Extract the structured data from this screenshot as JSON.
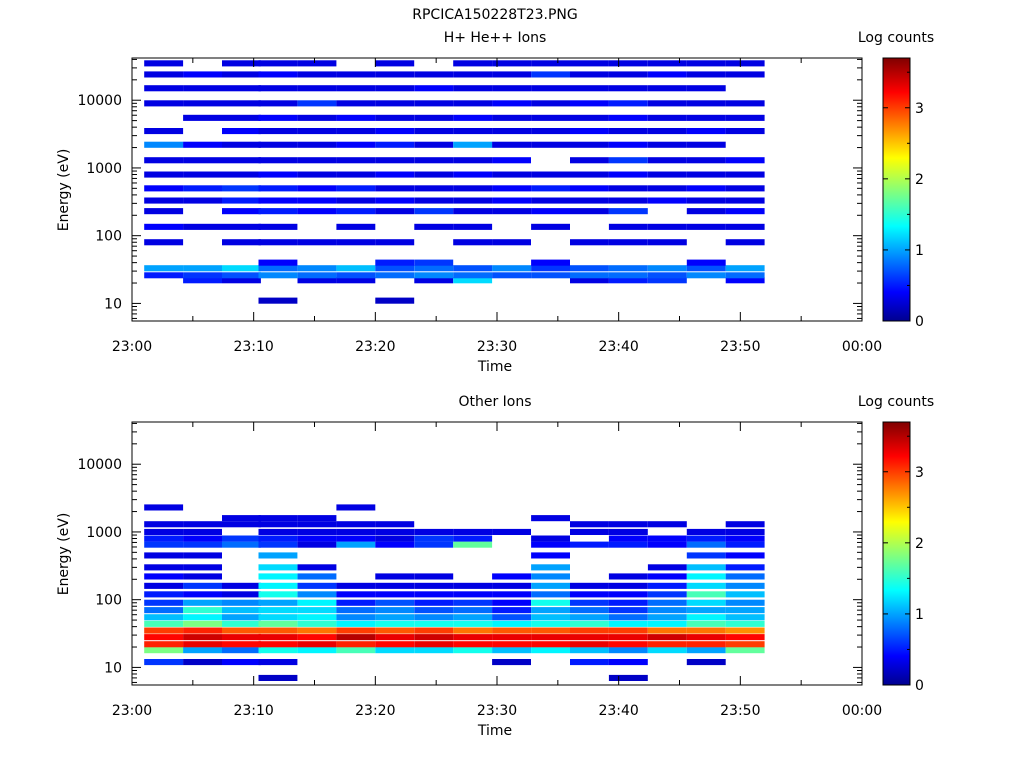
{
  "figure_title": "RPCICA150228T23.PNG",
  "chart_data": [
    {
      "type": "heatmap",
      "title": "H+ He++ Ions",
      "xlabel": "Time",
      "ylabel": "Energy (eV)",
      "colorbar_label": "Log counts",
      "colorbar_ticks": [
        "0",
        "1",
        "2",
        "3"
      ],
      "colorbar_range": [
        0,
        3.7
      ],
      "xticks": [
        "23:00",
        "23:10",
        "23:20",
        "23:30",
        "23:40",
        "23:50",
        "00:00"
      ],
      "xlim_minutes": [
        0,
        60
      ],
      "yticks": [
        "10",
        "100",
        "1000",
        "10000"
      ],
      "yscale": "log",
      "ylim": [
        5.5,
        42000
      ],
      "time_bins_minutes": [
        1,
        4.2,
        7.4,
        10.4,
        13.6,
        16.8,
        20,
        23.2,
        26.4,
        29.6,
        32.8,
        36,
        39.2,
        42.4,
        45.6,
        48.8
      ],
      "energy_bins": [
        {
          "e": 11,
          "v": [
            null,
            null,
            null,
            0.2,
            null,
            null,
            0.2,
            null,
            null,
            null,
            null,
            null,
            null,
            null,
            null,
            null
          ]
        },
        {
          "e": 22,
          "v": [
            null,
            0.5,
            0.3,
            null,
            0.3,
            0.3,
            null,
            0.3,
            1.2,
            null,
            null,
            0.3,
            0.5,
            0.6,
            null,
            0.4
          ]
        },
        {
          "e": 26,
          "v": [
            0.5,
            0.6,
            0.7,
            0.9,
            0.8,
            0.7,
            0.8,
            0.9,
            0.8,
            0.7,
            0.7,
            0.8,
            0.8,
            0.7,
            0.9,
            0.8
          ]
        },
        {
          "e": 33,
          "v": [
            1.0,
            1.0,
            1.2,
            0.8,
            0.9,
            1.1,
            0.7,
            0.8,
            0.7,
            0.9,
            0.6,
            0.7,
            0.8,
            0.9,
            0.7,
            1.0
          ]
        },
        {
          "e": 40,
          "v": [
            null,
            null,
            null,
            0.4,
            null,
            null,
            0.5,
            0.6,
            null,
            null,
            0.4,
            null,
            null,
            null,
            0.4,
            null
          ]
        },
        {
          "e": 80,
          "v": [
            0.3,
            null,
            0.3,
            0.3,
            0.3,
            0.3,
            0.3,
            null,
            0.3,
            0.3,
            null,
            0.3,
            0.3,
            0.3,
            null,
            0.3
          ]
        },
        {
          "e": 135,
          "v": [
            0.4,
            0.3,
            0.3,
            0.3,
            null,
            0.3,
            null,
            0.3,
            0.3,
            null,
            0.3,
            null,
            0.3,
            0.3,
            0.3,
            0.3
          ]
        },
        {
          "e": 230,
          "v": [
            0.3,
            null,
            0.4,
            0.5,
            0.4,
            0.5,
            0.3,
            0.6,
            0.3,
            0.3,
            0.4,
            0.3,
            0.6,
            null,
            0.3,
            0.4
          ]
        },
        {
          "e": 330,
          "v": [
            0.3,
            0.3,
            0.5,
            0.4,
            0.4,
            0.3,
            0.4,
            0.3,
            0.3,
            0.4,
            0.3,
            0.3,
            0.3,
            0.4,
            0.3,
            0.3
          ]
        },
        {
          "e": 500,
          "v": [
            0.4,
            0.5,
            0.6,
            0.5,
            0.4,
            0.5,
            0.3,
            0.3,
            0.3,
            0.4,
            0.5,
            0.4,
            0.3,
            0.3,
            0.4,
            0.3
          ]
        },
        {
          "e": 800,
          "v": [
            0.3,
            0.3,
            0.3,
            0.4,
            0.3,
            0.3,
            0.4,
            0.3,
            0.4,
            0.3,
            0.3,
            0.3,
            0.4,
            0.3,
            0.3,
            0.3
          ]
        },
        {
          "e": 1300,
          "v": [
            0.3,
            0.3,
            0.3,
            0.3,
            0.3,
            0.3,
            0.3,
            0.3,
            0.3,
            0.4,
            null,
            0.3,
            0.6,
            0.3,
            0.3,
            0.4
          ]
        },
        {
          "e": 2200,
          "v": [
            0.9,
            0.4,
            0.3,
            0.3,
            0.3,
            0.4,
            0.5,
            0.3,
            1.0,
            0.3,
            0.3,
            0.3,
            0.4,
            0.3,
            0.3,
            null
          ]
        },
        {
          "e": 3500,
          "v": [
            0.3,
            null,
            0.4,
            0.3,
            0.3,
            0.3,
            0.4,
            0.3,
            0.3,
            0.3,
            0.3,
            0.4,
            0.3,
            0.3,
            0.4,
            0.3
          ]
        },
        {
          "e": 5500,
          "v": [
            null,
            0.3,
            0.3,
            0.4,
            0.3,
            0.4,
            0.3,
            0.3,
            0.4,
            0.3,
            0.3,
            0.3,
            0.4,
            0.3,
            0.3,
            0.3
          ]
        },
        {
          "e": 9000,
          "v": [
            0.3,
            0.3,
            0.3,
            0.3,
            0.6,
            0.3,
            0.3,
            0.3,
            0.3,
            0.4,
            0.3,
            0.4,
            0.5,
            0.3,
            0.3,
            0.3
          ]
        },
        {
          "e": 15000,
          "v": [
            0.3,
            0.3,
            0.3,
            0.3,
            0.3,
            0.3,
            0.3,
            0.4,
            0.3,
            0.3,
            0.3,
            0.3,
            0.3,
            0.3,
            0.3,
            null
          ]
        },
        {
          "e": 24000,
          "v": [
            0.3,
            0.4,
            0.3,
            0.4,
            0.3,
            0.3,
            0.3,
            0.3,
            0.3,
            0.3,
            0.6,
            0.3,
            0.3,
            0.4,
            0.3,
            0.3
          ]
        },
        {
          "e": 35000,
          "v": [
            0.3,
            null,
            0.3,
            0.3,
            0.3,
            null,
            0.3,
            null,
            0.3,
            0.3,
            0.3,
            0.3,
            0.3,
            0.3,
            0.3,
            0.3
          ]
        }
      ]
    },
    {
      "type": "heatmap",
      "title": "Other Ions",
      "xlabel": "Time",
      "ylabel": "Energy (eV)",
      "colorbar_label": "Log counts",
      "colorbar_ticks": [
        "0",
        "1",
        "2",
        "3"
      ],
      "colorbar_range": [
        0,
        3.7
      ],
      "xticks": [
        "23:00",
        "23:10",
        "23:20",
        "23:30",
        "23:40",
        "23:50",
        "00:00"
      ],
      "xlim_minutes": [
        0,
        60
      ],
      "yticks": [
        "10",
        "100",
        "1000",
        "10000"
      ],
      "yscale": "log",
      "ylim": [
        5.5,
        42000
      ],
      "time_bins_minutes": [
        1,
        4.2,
        7.4,
        10.4,
        13.6,
        16.8,
        20,
        23.2,
        26.4,
        29.6,
        32.8,
        36,
        39.2,
        42.4,
        45.6,
        48.8
      ],
      "energy_bins": [
        {
          "e": 7,
          "v": [
            null,
            null,
            null,
            0.2,
            null,
            null,
            null,
            null,
            null,
            null,
            null,
            null,
            0.2,
            null,
            null,
            null
          ]
        },
        {
          "e": 12,
          "v": [
            0.6,
            0.2,
            0.4,
            0.3,
            null,
            null,
            null,
            null,
            null,
            0.2,
            null,
            0.5,
            0.4,
            null,
            0.2,
            null
          ]
        },
        {
          "e": 18,
          "v": [
            1.8,
            1.0,
            0.8,
            1.4,
            1.3,
            1.6,
            1.2,
            1.2,
            1.4,
            1.1,
            1.3,
            1.1,
            0.9,
            1.2,
            1.0,
            1.7
          ]
        },
        {
          "e": 22,
          "v": [
            3.1,
            3.3,
            3.2,
            3.2,
            3.3,
            3.1,
            3.2,
            3.3,
            3.2,
            3.2,
            3.2,
            3.3,
            3.2,
            3.1,
            3.1,
            3.0
          ]
        },
        {
          "e": 28,
          "v": [
            3.2,
            3.4,
            3.3,
            3.3,
            3.2,
            3.5,
            3.3,
            3.4,
            3.3,
            3.3,
            3.3,
            3.3,
            3.3,
            3.4,
            3.3,
            3.2
          ]
        },
        {
          "e": 35,
          "v": [
            3.0,
            3.1,
            2.9,
            2.9,
            2.8,
            3.0,
            2.9,
            3.0,
            2.8,
            2.9,
            2.9,
            3.0,
            3.0,
            2.8,
            2.8,
            2.7
          ]
        },
        {
          "e": 44,
          "v": [
            1.6,
            1.8,
            1.5,
            1.7,
            1.5,
            1.3,
            1.4,
            1.4,
            1.4,
            1.3,
            1.4,
            1.5,
            1.3,
            1.3,
            1.6,
            1.5
          ]
        },
        {
          "e": 55,
          "v": [
            1.1,
            1.3,
            1.0,
            1.2,
            1.3,
            0.9,
            1.0,
            0.9,
            1.0,
            0.7,
            1.1,
            1.0,
            0.8,
            1.0,
            1.3,
            1.1
          ]
        },
        {
          "e": 70,
          "v": [
            0.8,
            1.5,
            1.1,
            1.2,
            1.2,
            0.8,
            0.9,
            0.7,
            0.8,
            0.5,
            1.0,
            0.8,
            0.6,
            0.9,
            1.0,
            1.0
          ]
        },
        {
          "e": 90,
          "v": [
            0.6,
            1.0,
            0.9,
            1.0,
            1.3,
            0.5,
            0.7,
            0.5,
            0.6,
            0.4,
            1.4,
            0.6,
            0.5,
            0.8,
            1.2,
            0.9
          ]
        },
        {
          "e": 120,
          "v": [
            0.5,
            0.4,
            0.3,
            1.4,
            0.9,
            0.4,
            0.4,
            0.4,
            0.4,
            0.4,
            0.8,
            0.4,
            0.4,
            0.6,
            1.6,
            1.1
          ]
        },
        {
          "e": 160,
          "v": [
            0.3,
            0.6,
            0.3,
            1.3,
            0.6,
            0.3,
            0.3,
            0.3,
            0.3,
            0.3,
            1.0,
            0.3,
            0.3,
            0.5,
            1.2,
            0.9
          ]
        },
        {
          "e": 220,
          "v": [
            0.4,
            0.3,
            null,
            1.3,
            0.8,
            null,
            0.3,
            0.3,
            null,
            0.4,
            0.9,
            null,
            0.3,
            0.4,
            1.3,
            0.8
          ]
        },
        {
          "e": 300,
          "v": [
            0.3,
            0.3,
            null,
            1.2,
            0.3,
            null,
            null,
            null,
            null,
            null,
            1.0,
            null,
            null,
            0.3,
            1.1,
            0.5
          ]
        },
        {
          "e": 450,
          "v": [
            0.3,
            0.3,
            null,
            1.0,
            null,
            null,
            null,
            null,
            null,
            null,
            0.4,
            null,
            null,
            null,
            0.6,
            0.4
          ]
        },
        {
          "e": 650,
          "v": [
            0.6,
            0.6,
            0.8,
            0.6,
            0.3,
            1.0,
            0.4,
            0.6,
            1.7,
            null,
            0.4,
            0.5,
            0.5,
            0.4,
            0.8,
            0.5
          ]
        },
        {
          "e": 800,
          "v": [
            0.5,
            0.4,
            0.6,
            0.5,
            0.4,
            0.4,
            0.3,
            0.6,
            0.5,
            null,
            0.3,
            null,
            0.4,
            0.4,
            0.5,
            0.4
          ]
        },
        {
          "e": 1000,
          "v": [
            0.3,
            0.3,
            null,
            0.3,
            0.3,
            0.3,
            0.3,
            0.3,
            0.3,
            0.3,
            null,
            0.3,
            0.3,
            null,
            0.3,
            0.3
          ]
        },
        {
          "e": 1300,
          "v": [
            0.3,
            0.3,
            0.3,
            0.3,
            0.3,
            0.3,
            0.3,
            null,
            null,
            null,
            null,
            0.3,
            0.3,
            0.3,
            null,
            0.3
          ]
        },
        {
          "e": 1600,
          "v": [
            null,
            null,
            0.3,
            0.3,
            0.3,
            null,
            null,
            null,
            null,
            null,
            0.3,
            null,
            null,
            null,
            null,
            null
          ]
        },
        {
          "e": 2300,
          "v": [
            0.3,
            null,
            null,
            null,
            null,
            0.3,
            null,
            null,
            null,
            null,
            null,
            null,
            null,
            null,
            null,
            null
          ]
        }
      ]
    }
  ]
}
